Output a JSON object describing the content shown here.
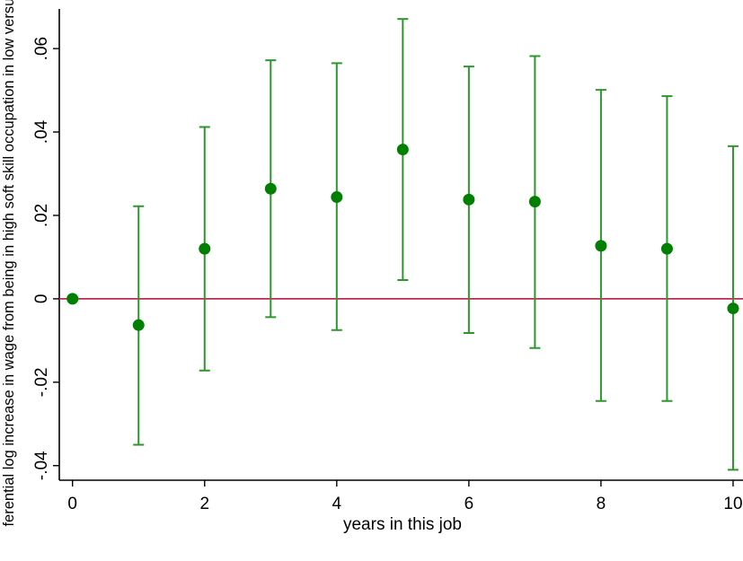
{
  "chart_data": {
    "type": "scatter",
    "title": "",
    "xlabel": "years in this job",
    "ylabel": "ferential log increase in wage from being in high soft skill occupation in low versus",
    "xlim": [
      -0.2,
      10.15
    ],
    "ylim": [
      -0.0435,
      0.0695
    ],
    "x_ticks": [
      0,
      2,
      4,
      6,
      8,
      10
    ],
    "x_tick_labels": [
      "0",
      "2",
      "4",
      "6",
      "8",
      "10"
    ],
    "y_ticks": [
      -0.04,
      -0.02,
      0,
      0.02,
      0.04,
      0.06
    ],
    "y_tick_labels": [
      "-.04",
      "-.02",
      "0",
      ".02",
      ".04",
      ".06"
    ],
    "reference_line": {
      "y": 0,
      "color": "#c0284e"
    },
    "grid": false,
    "colors": {
      "points": "#007f00",
      "error_bars": "#2e962e"
    },
    "series": [
      {
        "x": [
          0,
          1,
          2,
          3,
          4,
          5,
          6,
          7,
          8,
          9,
          10
        ],
        "y": [
          0.0,
          -0.0063,
          0.012,
          0.0264,
          0.0244,
          0.0358,
          0.0238,
          0.0233,
          0.0127,
          0.012,
          -0.0023
        ],
        "ci_low": [
          null,
          -0.035,
          -0.0172,
          -0.0044,
          -0.0075,
          0.0045,
          -0.0082,
          -0.0118,
          -0.0245,
          -0.0245,
          -0.041
        ],
        "ci_high": [
          null,
          0.0222,
          0.0412,
          0.0572,
          0.0565,
          0.0671,
          0.0557,
          0.0582,
          0.0501,
          0.0486,
          0.0366
        ]
      }
    ]
  }
}
